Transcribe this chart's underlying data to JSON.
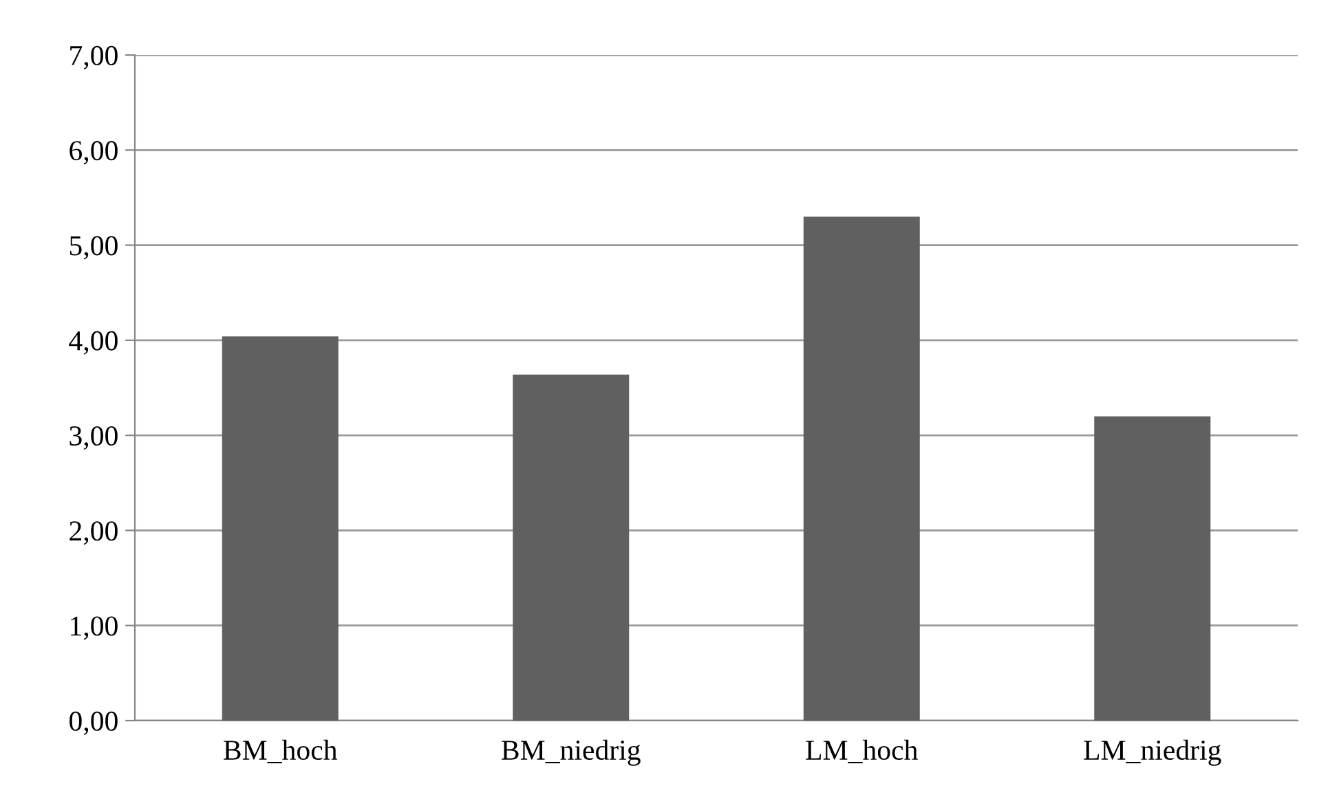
{
  "chart_data": {
    "type": "bar",
    "categories": [
      "BM_hoch",
      "BM_niedrig",
      "LM_hoch",
      "LM_niedrig"
    ],
    "values": [
      4.04,
      3.64,
      5.3,
      3.2
    ],
    "color": "#606060",
    "ylim": [
      0,
      7
    ],
    "yticks": [
      {
        "value": 0,
        "label": "0,00"
      },
      {
        "value": 1,
        "label": "1,00"
      },
      {
        "value": 2,
        "label": "2,00"
      },
      {
        "value": 3,
        "label": "3,00"
      },
      {
        "value": 4,
        "label": "4,00"
      },
      {
        "value": 5,
        "label": "5,00"
      },
      {
        "value": 6,
        "label": "6,00"
      },
      {
        "value": 7,
        "label": "7,00"
      }
    ],
    "grid": "y"
  }
}
